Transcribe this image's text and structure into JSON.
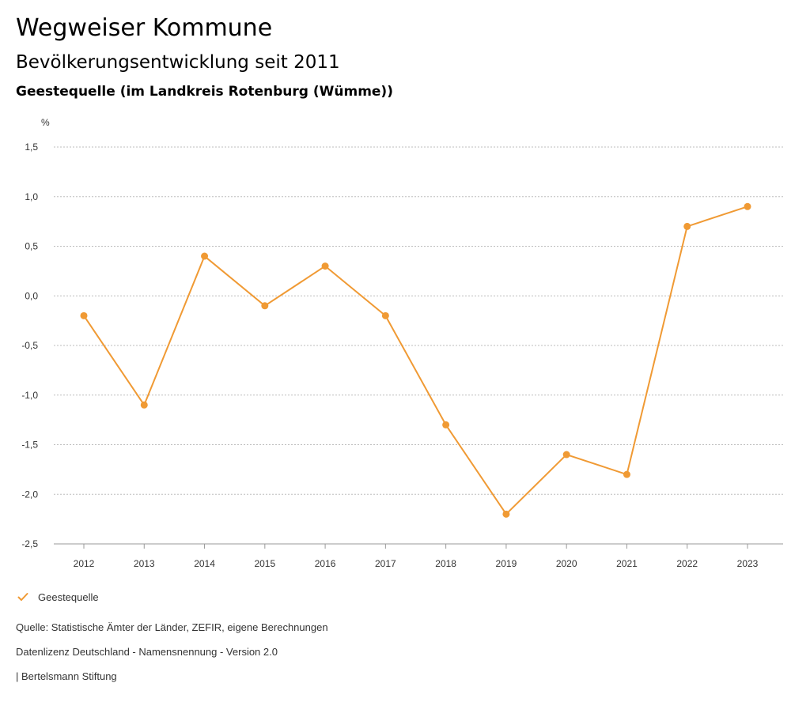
{
  "header": {
    "title": "Wegweiser Kommune",
    "subtitle": "Bevölkerungsentwicklung seit 2011",
    "region": "Geestequelle (im Landkreis Rotenburg (Wümme))"
  },
  "chart_data": {
    "type": "line",
    "title": "Bevölkerungsentwicklung seit 2011",
    "xlabel": "",
    "ylabel": "%",
    "categories": [
      "2012",
      "2013",
      "2014",
      "2015",
      "2016",
      "2017",
      "2018",
      "2019",
      "2020",
      "2021",
      "2022",
      "2023"
    ],
    "series": [
      {
        "name": "Geestequelle",
        "color": "#f09a34",
        "values": [
          -0.2,
          -1.1,
          0.4,
          -0.1,
          0.3,
          -0.2,
          -1.3,
          -2.2,
          -1.6,
          -1.8,
          0.7,
          0.9
        ]
      }
    ],
    "yticks": [
      1.5,
      1.0,
      0.5,
      0.0,
      -0.5,
      -1.0,
      -1.5,
      -2.0,
      -2.5
    ],
    "ytick_labels": [
      "1,5",
      "1,0",
      "0,5",
      "0,0",
      "-0,5",
      "-1,0",
      "-1,5",
      "-2,0",
      "-2,5"
    ],
    "ylim": [
      -2.5,
      1.5
    ],
    "grid": true,
    "legend_position": "bottom-left"
  },
  "legend": {
    "label": "Geestequelle",
    "icon": "check-icon",
    "color": "#f09a34"
  },
  "footer": {
    "source": "Quelle: Statistische Ämter der Länder, ZEFIR, eigene Berechnungen",
    "license": "Datenlizenz Deutschland - Namensnennung - Version 2.0",
    "brand": "| Bertelsmann Stiftung"
  }
}
